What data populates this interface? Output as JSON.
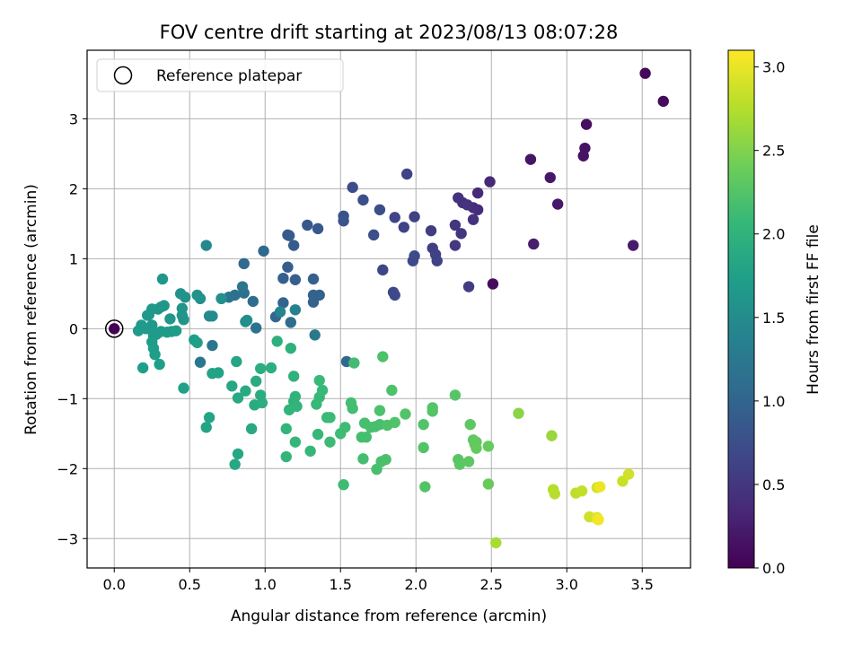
{
  "chart_data": {
    "type": "scatter",
    "title": "FOV centre drift starting at 2023/08/13 08:07:28",
    "xlabel": "Angular distance from reference (arcmin)",
    "ylabel": "Rotation from reference (arcmin)",
    "xlim": [
      -0.18,
      3.82
    ],
    "ylim": [
      -3.42,
      3.98
    ],
    "xticks": [
      "0.0",
      "0.5",
      "1.0",
      "1.5",
      "2.0",
      "2.5",
      "3.0",
      "3.5"
    ],
    "yticks": [
      "−3",
      "−2",
      "−1",
      "0",
      "1",
      "2",
      "3"
    ],
    "xtick_values": [
      0,
      0.5,
      1,
      1.5,
      2,
      2.5,
      3,
      3.5
    ],
    "ytick_values": [
      -3,
      -2,
      -1,
      0,
      1,
      2,
      3
    ],
    "grid": true,
    "legend": {
      "placement": "top-left",
      "label": "Reference platepar"
    },
    "reference_point": {
      "x": 0,
      "y": 0
    },
    "colorbar": {
      "label": "Hours from first FF file",
      "range": [
        0,
        3.1
      ],
      "ticks": [
        "0.0",
        "0.5",
        "1.0",
        "1.5",
        "2.0",
        "2.5",
        "3.0"
      ],
      "tick_values": [
        0,
        0.5,
        1,
        1.5,
        2,
        2.5,
        3
      ],
      "colormap": "viridis",
      "stops": [
        "#440154",
        "#482878",
        "#3e4989",
        "#31688e",
        "#26828e",
        "#1f9e89",
        "#35b779",
        "#6ece58",
        "#b5de2b",
        "#fde725"
      ]
    },
    "points": [
      [
        0.0,
        0.0,
        0.0
      ],
      [
        3.52,
        3.65,
        0.05
      ],
      [
        3.64,
        3.25,
        0.08
      ],
      [
        3.13,
        2.92,
        0.12
      ],
      [
        3.12,
        2.58,
        0.15
      ],
      [
        3.11,
        2.47,
        0.16
      ],
      [
        2.76,
        2.42,
        0.18
      ],
      [
        2.89,
        2.16,
        0.2
      ],
      [
        2.94,
        1.78,
        0.21
      ],
      [
        3.44,
        1.19,
        0.23
      ],
      [
        2.78,
        1.21,
        0.25
      ],
      [
        2.51,
        0.64,
        0.1
      ],
      [
        2.49,
        2.1,
        0.35
      ],
      [
        2.41,
        1.94,
        0.38
      ],
      [
        2.41,
        1.7,
        0.4
      ],
      [
        2.38,
        1.73,
        0.41
      ],
      [
        2.31,
        1.8,
        0.42
      ],
      [
        2.28,
        1.87,
        0.44
      ],
      [
        2.38,
        1.56,
        0.45
      ],
      [
        2.34,
        1.77,
        0.46
      ],
      [
        2.26,
        1.48,
        0.48
      ],
      [
        2.3,
        1.36,
        0.5
      ],
      [
        2.26,
        1.19,
        0.52
      ],
      [
        2.35,
        0.6,
        0.55
      ],
      [
        2.1,
        1.4,
        0.56
      ],
      [
        2.11,
        1.15,
        0.58
      ],
      [
        2.13,
        1.06,
        0.6
      ],
      [
        2.14,
        0.97,
        0.62
      ],
      [
        1.99,
        1.6,
        0.62
      ],
      [
        1.94,
        2.21,
        0.63
      ],
      [
        1.92,
        1.45,
        0.64
      ],
      [
        1.86,
        1.59,
        0.65
      ],
      [
        1.78,
        0.84,
        0.66
      ],
      [
        1.85,
        0.52,
        0.68
      ],
      [
        1.86,
        0.48,
        0.69
      ],
      [
        1.98,
        0.97,
        0.7
      ],
      [
        1.99,
        1.04,
        0.7
      ],
      [
        1.58,
        2.02,
        0.72
      ],
      [
        1.76,
        1.7,
        0.74
      ],
      [
        1.72,
        1.34,
        0.75
      ],
      [
        1.65,
        1.84,
        0.76
      ],
      [
        1.52,
        1.61,
        0.78
      ],
      [
        1.52,
        1.54,
        0.8
      ],
      [
        1.35,
        1.43,
        0.84
      ],
      [
        1.28,
        1.48,
        0.85
      ],
      [
        1.16,
        1.33,
        0.88
      ],
      [
        1.15,
        1.34,
        0.89
      ],
      [
        1.19,
        1.19,
        0.9
      ],
      [
        1.15,
        0.88,
        0.92
      ],
      [
        1.12,
        0.72,
        0.93
      ],
      [
        1.2,
        0.7,
        0.94
      ],
      [
        1.32,
        0.71,
        0.95
      ],
      [
        1.32,
        0.48,
        0.96
      ],
      [
        1.36,
        0.48,
        0.97
      ],
      [
        1.32,
        0.38,
        0.98
      ],
      [
        1.12,
        0.37,
        1.0
      ],
      [
        1.07,
        0.17,
        1.02
      ],
      [
        0.99,
        1.11,
        1.04
      ],
      [
        0.86,
        0.93,
        1.06
      ],
      [
        0.92,
        0.39,
        1.1
      ],
      [
        0.86,
        0.51,
        1.12
      ],
      [
        0.8,
        0.48,
        1.14
      ],
      [
        0.76,
        0.45,
        1.18
      ],
      [
        0.94,
        0.01,
        1.16
      ],
      [
        1.17,
        0.09,
        1.08
      ],
      [
        1.33,
        -0.09,
        1.25
      ],
      [
        1.54,
        -0.47,
        1.05
      ],
      [
        1.2,
        0.27,
        1.35
      ],
      [
        1.1,
        0.24,
        1.4
      ],
      [
        0.85,
        0.6,
        1.2
      ],
      [
        0.65,
        -0.24,
        1.22
      ],
      [
        0.57,
        -0.48,
        1.24
      ],
      [
        0.61,
        1.19,
        1.45
      ],
      [
        0.63,
        0.18,
        1.48
      ],
      [
        0.65,
        0.18,
        1.5
      ],
      [
        0.88,
        0.12,
        1.52
      ],
      [
        0.87,
        0.1,
        1.53
      ],
      [
        0.71,
        0.43,
        1.55
      ],
      [
        0.57,
        0.43,
        1.56
      ],
      [
        0.55,
        0.48,
        1.57
      ],
      [
        0.47,
        0.45,
        1.58
      ],
      [
        0.44,
        0.5,
        1.59
      ],
      [
        0.45,
        0.29,
        1.6
      ],
      [
        0.46,
        0.13,
        1.6
      ],
      [
        0.45,
        0.19,
        1.61
      ],
      [
        0.37,
        0.14,
        1.62
      ],
      [
        0.32,
        0.71,
        1.62
      ],
      [
        0.33,
        0.33,
        1.63
      ],
      [
        0.31,
        0.31,
        1.64
      ],
      [
        0.29,
        0.28,
        1.64
      ],
      [
        0.25,
        0.28,
        1.65
      ],
      [
        0.23,
        0.2,
        1.65
      ],
      [
        0.22,
        0.19,
        1.66
      ],
      [
        0.25,
        0.05,
        1.66
      ],
      [
        0.21,
        0.0,
        1.67
      ],
      [
        0.18,
        0.05,
        1.67
      ],
      [
        0.16,
        -0.03,
        1.68
      ],
      [
        0.26,
        -0.1,
        1.68
      ],
      [
        0.28,
        -0.08,
        1.69
      ],
      [
        0.31,
        -0.04,
        1.69
      ],
      [
        0.35,
        -0.05,
        1.7
      ],
      [
        0.38,
        -0.04,
        1.7
      ],
      [
        0.41,
        -0.03,
        1.71
      ],
      [
        0.25,
        -0.19,
        1.71
      ],
      [
        0.26,
        -0.28,
        1.72
      ],
      [
        0.27,
        -0.37,
        1.72
      ],
      [
        0.3,
        -0.51,
        1.73
      ],
      [
        0.19,
        -0.56,
        1.73
      ],
      [
        0.53,
        -0.16,
        1.74
      ],
      [
        0.55,
        -0.2,
        1.75
      ],
      [
        0.46,
        -0.85,
        1.76
      ],
      [
        0.69,
        -0.63,
        1.78
      ],
      [
        0.65,
        -0.64,
        1.79
      ],
      [
        0.61,
        -1.41,
        1.8
      ],
      [
        0.63,
        -1.27,
        1.81
      ],
      [
        0.81,
        -0.47,
        1.82
      ],
      [
        0.78,
        -0.82,
        1.85
      ],
      [
        0.82,
        -0.99,
        1.86
      ],
      [
        0.87,
        -0.89,
        1.87
      ],
      [
        0.91,
        -1.43,
        1.88
      ],
      [
        0.93,
        -1.09,
        1.89
      ],
      [
        0.94,
        -0.75,
        1.9
      ],
      [
        0.97,
        -0.95,
        1.91
      ],
      [
        0.98,
        -1.06,
        1.92
      ],
      [
        0.97,
        -0.57,
        1.93
      ],
      [
        1.04,
        -0.56,
        1.94
      ],
      [
        1.08,
        -0.18,
        1.96
      ],
      [
        1.17,
        -0.28,
        1.98
      ],
      [
        1.19,
        -0.68,
        1.99
      ],
      [
        1.2,
        -0.97,
        2.0
      ],
      [
        1.19,
        -1.04,
        2.0
      ],
      [
        1.21,
        -1.11,
        2.01
      ],
      [
        1.16,
        -1.16,
        2.02
      ],
      [
        1.14,
        -1.43,
        2.03
      ],
      [
        1.14,
        -1.83,
        2.04
      ],
      [
        1.2,
        -1.62,
        2.05
      ],
      [
        0.8,
        -1.94,
        1.84
      ],
      [
        0.82,
        -1.79,
        1.85
      ],
      [
        1.3,
        -1.75,
        2.06
      ],
      [
        1.35,
        -1.51,
        2.07
      ],
      [
        1.36,
        -0.98,
        2.08
      ],
      [
        1.34,
        -1.08,
        2.08
      ],
      [
        1.38,
        -0.88,
        2.09
      ],
      [
        1.36,
        -0.74,
        2.09
      ],
      [
        1.41,
        -1.27,
        2.1
      ],
      [
        1.43,
        -1.27,
        2.1
      ],
      [
        1.43,
        -1.62,
        2.11
      ],
      [
        1.5,
        -1.5,
        2.12
      ],
      [
        1.53,
        -1.41,
        2.12
      ],
      [
        1.52,
        -2.23,
        2.13
      ],
      [
        1.59,
        -0.49,
        2.14
      ],
      [
        1.57,
        -1.06,
        2.15
      ],
      [
        1.58,
        -1.14,
        2.15
      ],
      [
        1.64,
        -1.55,
        2.16
      ],
      [
        1.65,
        -1.86,
        2.16
      ],
      [
        1.66,
        -1.35,
        2.17
      ],
      [
        1.67,
        -1.55,
        2.17
      ],
      [
        1.7,
        -1.41,
        2.18
      ],
      [
        1.73,
        -1.4,
        2.18
      ],
      [
        1.76,
        -1.37,
        2.19
      ],
      [
        1.74,
        -2.01,
        2.19
      ],
      [
        1.77,
        -1.9,
        2.2
      ],
      [
        1.8,
        -1.87,
        2.2
      ],
      [
        1.76,
        -1.17,
        2.21
      ],
      [
        1.78,
        -0.4,
        2.21
      ],
      [
        1.84,
        -0.88,
        2.22
      ],
      [
        1.81,
        -1.38,
        2.22
      ],
      [
        1.86,
        -1.34,
        2.23
      ],
      [
        1.93,
        -1.22,
        2.24
      ],
      [
        2.05,
        -1.37,
        2.24
      ],
      [
        2.05,
        -1.7,
        2.25
      ],
      [
        2.06,
        -2.26,
        2.25
      ],
      [
        2.11,
        -1.13,
        2.26
      ],
      [
        2.11,
        -1.18,
        2.26
      ],
      [
        2.26,
        -0.95,
        2.27
      ],
      [
        2.28,
        -1.87,
        2.28
      ],
      [
        2.29,
        -1.94,
        2.29
      ],
      [
        2.35,
        -1.9,
        2.3
      ],
      [
        2.36,
        -1.37,
        2.31
      ],
      [
        2.38,
        -1.59,
        2.32
      ],
      [
        2.4,
        -1.62,
        2.33
      ],
      [
        2.39,
        -1.65,
        2.34
      ],
      [
        2.4,
        -1.71,
        2.35
      ],
      [
        2.48,
        -1.68,
        2.36
      ],
      [
        2.48,
        -2.22,
        2.37
      ],
      [
        2.68,
        -1.21,
        2.55
      ],
      [
        2.53,
        -3.06,
        2.7
      ],
      [
        2.9,
        -1.53,
        2.62
      ],
      [
        2.91,
        -2.3,
        2.75
      ],
      [
        2.92,
        -2.36,
        2.77
      ],
      [
        3.06,
        -2.35,
        2.8
      ],
      [
        3.1,
        -2.32,
        2.82
      ],
      [
        3.15,
        -2.69,
        2.87
      ],
      [
        3.2,
        -2.27,
        2.9
      ],
      [
        3.2,
        -2.7,
        2.95
      ],
      [
        3.2,
        -2.72,
        2.98
      ],
      [
        3.37,
        -2.18,
        2.85
      ],
      [
        3.41,
        -2.08,
        2.88
      ],
      [
        3.22,
        -2.26,
        3.02
      ],
      [
        3.21,
        -2.73,
        3.05
      ]
    ]
  }
}
